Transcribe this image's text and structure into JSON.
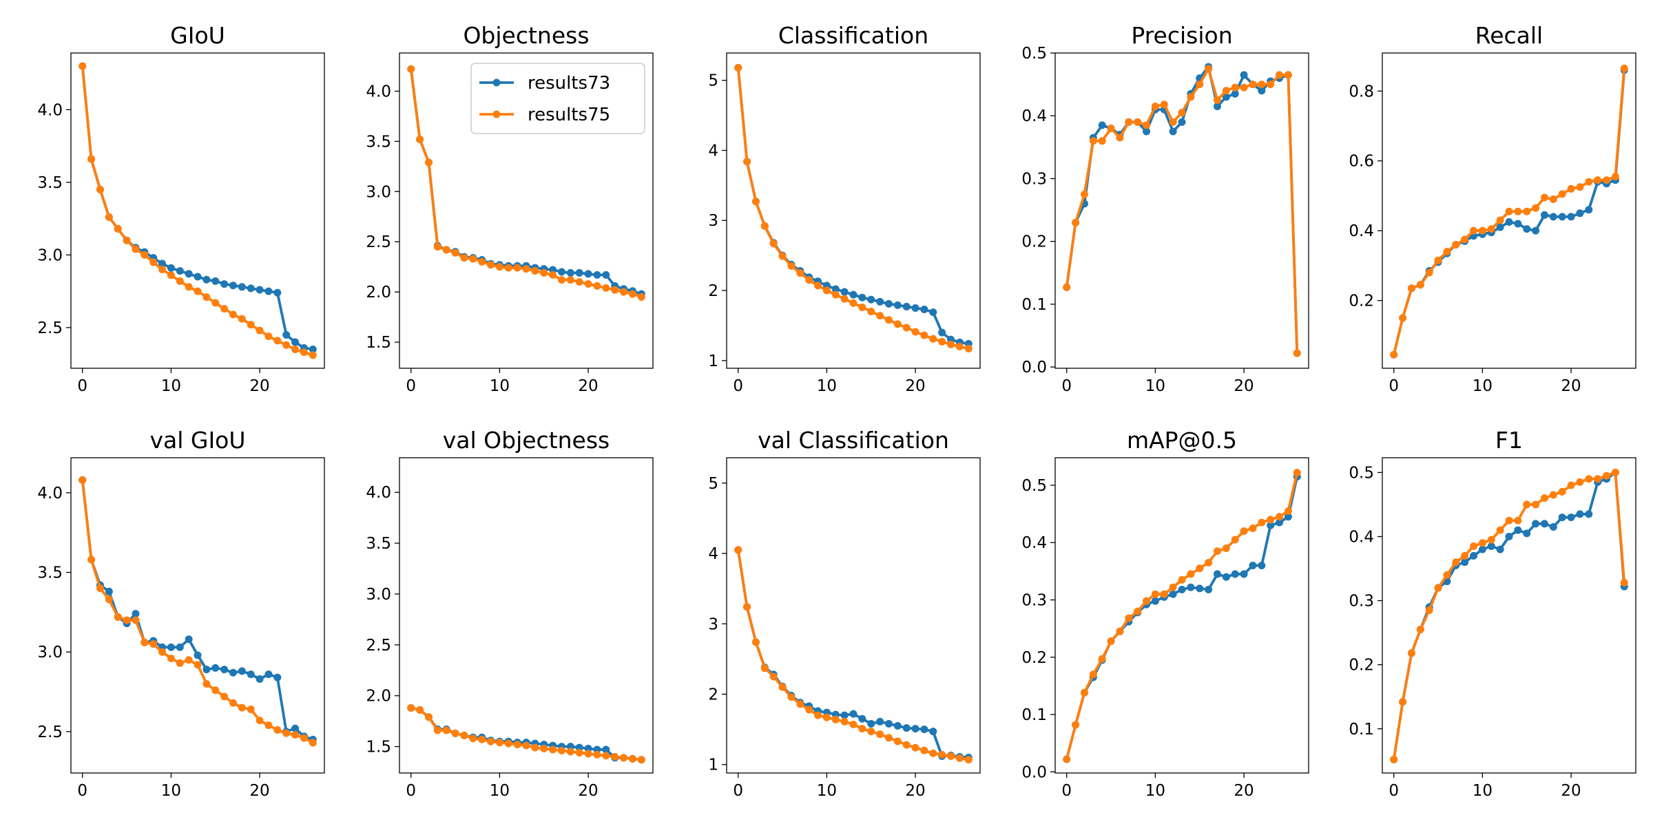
{
  "chart_data": [
    {
      "type": "line",
      "title": "GIoU",
      "x": [
        0,
        1,
        2,
        3,
        4,
        5,
        6,
        7,
        8,
        9,
        10,
        11,
        12,
        13,
        14,
        15,
        16,
        17,
        18,
        19,
        20,
        21,
        22,
        23,
        24,
        25,
        26
      ],
      "xlim": [
        -1.3,
        27.3
      ],
      "xticks": [
        0,
        10,
        20
      ],
      "ylim": [
        2.22,
        4.39
      ],
      "yticks": [
        2.5,
        {
          "value": 3,
          "label": "3.0"
        },
        3.5,
        {
          "value": 4,
          "label": "4.0"
        }
      ],
      "series": [
        {
          "color": "#1f77b4",
          "values": [
            4.3,
            3.66,
            3.45,
            3.26,
            3.18,
            3.1,
            3.05,
            3.02,
            2.98,
            2.94,
            2.91,
            2.89,
            2.87,
            2.85,
            2.83,
            2.82,
            2.8,
            2.79,
            2.78,
            2.77,
            2.76,
            2.75,
            2.74,
            2.45,
            2.4,
            2.36,
            2.35
          ]
        },
        {
          "color": "#ff7f0e",
          "values": [
            4.3,
            3.66,
            3.45,
            3.26,
            3.18,
            3.1,
            3.04,
            3.0,
            2.95,
            2.9,
            2.86,
            2.82,
            2.78,
            2.75,
            2.71,
            2.67,
            2.63,
            2.59,
            2.56,
            2.52,
            2.48,
            2.44,
            2.41,
            2.38,
            2.35,
            2.33,
            2.31
          ]
        }
      ]
    },
    {
      "type": "line",
      "title": "Objectness",
      "x": [
        0,
        1,
        2,
        3,
        4,
        5,
        6,
        7,
        8,
        9,
        10,
        11,
        12,
        13,
        14,
        15,
        16,
        17,
        18,
        19,
        20,
        21,
        22,
        23,
        24,
        25,
        26
      ],
      "xlim": [
        -1.3,
        27.3
      ],
      "xticks": [
        0,
        10,
        20
      ],
      "ylim": [
        1.24,
        4.38
      ],
      "yticks": [
        1.5,
        {
          "value": 2,
          "label": "2.0"
        },
        2.5,
        {
          "value": 3,
          "label": "3.0"
        },
        3.5,
        {
          "value": 4,
          "label": "4.0"
        }
      ],
      "legend": "upper right",
      "series": [
        {
          "name": "results73",
          "color": "#1f77b4",
          "values": [
            4.22,
            3.52,
            3.29,
            2.46,
            2.42,
            2.4,
            2.35,
            2.34,
            2.32,
            2.28,
            2.27,
            2.26,
            2.26,
            2.26,
            2.24,
            2.23,
            2.22,
            2.2,
            2.19,
            2.19,
            2.18,
            2.17,
            2.17,
            2.06,
            2.03,
            2.01,
            1.98
          ]
        },
        {
          "name": "results75",
          "color": "#ff7f0e",
          "values": [
            4.22,
            3.52,
            3.29,
            2.45,
            2.42,
            2.39,
            2.34,
            2.33,
            2.3,
            2.27,
            2.25,
            2.24,
            2.24,
            2.23,
            2.21,
            2.19,
            2.17,
            2.12,
            2.12,
            2.1,
            2.08,
            2.06,
            2.04,
            2.02,
            2.0,
            1.98,
            1.95
          ]
        }
      ]
    },
    {
      "type": "line",
      "title": "Classification",
      "x": [
        0,
        1,
        2,
        3,
        4,
        5,
        6,
        7,
        8,
        9,
        10,
        11,
        12,
        13,
        14,
        15,
        16,
        17,
        18,
        19,
        20,
        21,
        22,
        23,
        24,
        25,
        26
      ],
      "xlim": [
        -1.3,
        27.3
      ],
      "xticks": [
        0,
        10,
        20
      ],
      "ylim": [
        0.89,
        5.39
      ],
      "yticks": [
        1,
        2,
        3,
        4,
        5
      ],
      "series": [
        {
          "color": "#1f77b4",
          "values": [
            5.18,
            3.84,
            3.27,
            2.92,
            2.68,
            2.5,
            2.37,
            2.28,
            2.19,
            2.13,
            2.07,
            2.02,
            1.98,
            1.94,
            1.9,
            1.87,
            1.84,
            1.81,
            1.79,
            1.77,
            1.75,
            1.73,
            1.69,
            1.4,
            1.3,
            1.26,
            1.24
          ]
        },
        {
          "color": "#ff7f0e",
          "values": [
            5.18,
            3.84,
            3.27,
            2.92,
            2.67,
            2.49,
            2.35,
            2.25,
            2.15,
            2.07,
            2.0,
            1.94,
            1.88,
            1.82,
            1.76,
            1.7,
            1.64,
            1.58,
            1.52,
            1.47,
            1.41,
            1.36,
            1.31,
            1.27,
            1.23,
            1.2,
            1.17
          ]
        }
      ]
    },
    {
      "type": "line",
      "title": "Precision",
      "x": [
        0,
        1,
        2,
        3,
        4,
        5,
        6,
        7,
        8,
        9,
        10,
        11,
        12,
        13,
        14,
        15,
        16,
        17,
        18,
        19,
        20,
        21,
        22,
        23,
        24,
        25,
        26
      ],
      "xlim": [
        -1.3,
        27.3
      ],
      "xticks": [
        0,
        10,
        20
      ],
      "ylim": [
        -0.002,
        0.5
      ],
      "yticks": [
        {
          "value": 0,
          "label": "0.0"
        },
        0.1,
        0.2,
        0.3,
        0.4,
        0.5
      ],
      "series": [
        {
          "color": "#1f77b4",
          "values": [
            0.127,
            0.23,
            0.26,
            0.365,
            0.385,
            0.38,
            0.37,
            0.39,
            0.39,
            0.375,
            0.41,
            0.41,
            0.375,
            0.39,
            0.435,
            0.46,
            0.478,
            0.415,
            0.43,
            0.435,
            0.465,
            0.45,
            0.44,
            0.455,
            0.46,
            0.465,
            0.022
          ]
        },
        {
          "color": "#ff7f0e",
          "values": [
            0.127,
            0.23,
            0.275,
            0.36,
            0.36,
            0.38,
            0.365,
            0.39,
            0.39,
            0.385,
            0.415,
            0.418,
            0.39,
            0.405,
            0.43,
            0.45,
            0.475,
            0.425,
            0.44,
            0.445,
            0.445,
            0.45,
            0.45,
            0.45,
            0.465,
            0.465,
            0.022
          ]
        }
      ]
    },
    {
      "type": "line",
      "title": "Recall",
      "x": [
        0,
        1,
        2,
        3,
        4,
        5,
        6,
        7,
        8,
        9,
        10,
        11,
        12,
        13,
        14,
        15,
        16,
        17,
        18,
        19,
        20,
        21,
        22,
        23,
        24,
        25,
        26
      ],
      "xlim": [
        -1.3,
        27.3
      ],
      "xticks": [
        0,
        10,
        20
      ],
      "ylim": [
        0.006,
        0.909
      ],
      "yticks": [
        0.2,
        0.4,
        0.6,
        0.8
      ],
      "series": [
        {
          "color": "#1f77b4",
          "values": [
            0.045,
            0.15,
            0.235,
            0.245,
            0.285,
            0.31,
            0.335,
            0.36,
            0.37,
            0.385,
            0.39,
            0.395,
            0.41,
            0.425,
            0.42,
            0.405,
            0.4,
            0.445,
            0.44,
            0.44,
            0.44,
            0.45,
            0.46,
            0.54,
            0.535,
            0.545,
            0.86
          ]
        },
        {
          "color": "#ff7f0e",
          "values": [
            0.045,
            0.15,
            0.235,
            0.245,
            0.28,
            0.315,
            0.34,
            0.36,
            0.375,
            0.4,
            0.4,
            0.405,
            0.43,
            0.455,
            0.455,
            0.455,
            0.465,
            0.495,
            0.49,
            0.505,
            0.52,
            0.525,
            0.54,
            0.545,
            0.545,
            0.555,
            0.865
          ]
        }
      ]
    },
    {
      "type": "line",
      "title": "val GIoU",
      "x": [
        0,
        1,
        2,
        3,
        4,
        5,
        6,
        7,
        8,
        9,
        10,
        11,
        12,
        13,
        14,
        15,
        16,
        17,
        18,
        19,
        20,
        21,
        22,
        23,
        24,
        25,
        26
      ],
      "xlim": [
        -1.3,
        27.3
      ],
      "xticks": [
        0,
        10,
        20
      ],
      "ylim": [
        2.24,
        4.22
      ],
      "yticks": [
        2.5,
        {
          "value": 3,
          "label": "3.0"
        },
        3.5,
        {
          "value": 4,
          "label": "4.0"
        }
      ],
      "series": [
        {
          "color": "#1f77b4",
          "values": [
            4.08,
            3.58,
            3.42,
            3.38,
            3.22,
            3.18,
            3.24,
            3.06,
            3.07,
            3.03,
            3.03,
            3.03,
            3.08,
            2.98,
            2.89,
            2.9,
            2.89,
            2.87,
            2.88,
            2.86,
            2.83,
            2.86,
            2.84,
            2.5,
            2.52,
            2.47,
            2.45
          ]
        },
        {
          "color": "#ff7f0e",
          "values": [
            4.08,
            3.58,
            3.4,
            3.33,
            3.22,
            3.2,
            3.2,
            3.06,
            3.05,
            3.0,
            2.96,
            2.93,
            2.95,
            2.92,
            2.8,
            2.76,
            2.72,
            2.68,
            2.65,
            2.64,
            2.57,
            2.54,
            2.51,
            2.49,
            2.48,
            2.46,
            2.43
          ]
        }
      ]
    },
    {
      "type": "line",
      "title": "val Objectness",
      "x": [
        0,
        1,
        2,
        3,
        4,
        5,
        6,
        7,
        8,
        9,
        10,
        11,
        12,
        13,
        14,
        15,
        16,
        17,
        18,
        19,
        20,
        21,
        22,
        23,
        24,
        25,
        26
      ],
      "xlim": [
        -1.3,
        27.3
      ],
      "xticks": [
        0,
        10,
        20
      ],
      "ylim": [
        1.24,
        4.34
      ],
      "yticks": [
        1.5,
        {
          "value": 2,
          "label": "2.0"
        },
        2.5,
        {
          "value": 3,
          "label": "3.0"
        },
        3.5,
        {
          "value": 4,
          "label": "4.0"
        }
      ],
      "series": [
        {
          "color": "#1f77b4",
          "values": [
            1.88,
            1.86,
            1.79,
            1.67,
            1.67,
            1.63,
            1.61,
            1.59,
            1.59,
            1.56,
            1.55,
            1.55,
            1.54,
            1.54,
            1.53,
            1.52,
            1.51,
            1.5,
            1.5,
            1.49,
            1.48,
            1.47,
            1.47,
            1.39,
            1.39,
            1.38,
            1.37
          ]
        },
        {
          "color": "#ff7f0e",
          "values": [
            1.88,
            1.86,
            1.79,
            1.66,
            1.66,
            1.63,
            1.61,
            1.58,
            1.57,
            1.55,
            1.54,
            1.53,
            1.52,
            1.51,
            1.49,
            1.48,
            1.47,
            1.46,
            1.45,
            1.44,
            1.43,
            1.42,
            1.41,
            1.4,
            1.39,
            1.38,
            1.37
          ]
        }
      ]
    },
    {
      "type": "line",
      "title": "val Classification",
      "x": [
        0,
        1,
        2,
        3,
        4,
        5,
        6,
        7,
        8,
        9,
        10,
        11,
        12,
        13,
        14,
        15,
        16,
        17,
        18,
        19,
        20,
        21,
        22,
        23,
        24,
        25,
        26
      ],
      "xlim": [
        -1.3,
        27.3
      ],
      "xticks": [
        0,
        10,
        20
      ],
      "ylim": [
        0.88,
        5.36
      ],
      "yticks": [
        1,
        2,
        3,
        4,
        5
      ],
      "series": [
        {
          "color": "#1f77b4",
          "values": [
            4.05,
            3.24,
            2.74,
            2.38,
            2.28,
            2.11,
            1.98,
            1.88,
            1.83,
            1.76,
            1.74,
            1.71,
            1.7,
            1.72,
            1.65,
            1.58,
            1.61,
            1.58,
            1.55,
            1.52,
            1.51,
            1.5,
            1.47,
            1.12,
            1.13,
            1.11,
            1.1
          ]
        },
        {
          "color": "#ff7f0e",
          "values": [
            4.05,
            3.24,
            2.74,
            2.37,
            2.25,
            2.1,
            1.96,
            1.86,
            1.78,
            1.7,
            1.67,
            1.64,
            1.61,
            1.57,
            1.51,
            1.47,
            1.43,
            1.38,
            1.33,
            1.28,
            1.24,
            1.2,
            1.16,
            1.14,
            1.12,
            1.09,
            1.07
          ]
        }
      ]
    },
    {
      "type": "line",
      "title": "mAP@0.5",
      "x": [
        0,
        1,
        2,
        3,
        4,
        5,
        6,
        7,
        8,
        9,
        10,
        11,
        12,
        13,
        14,
        15,
        16,
        17,
        18,
        19,
        20,
        21,
        22,
        23,
        24,
        25,
        26
      ],
      "xlim": [
        -1.3,
        27.3
      ],
      "xticks": [
        0,
        10,
        20
      ],
      "ylim": [
        -0.002,
        0.548
      ],
      "yticks": [
        {
          "value": 0,
          "label": "0.0"
        },
        0.1,
        0.2,
        0.3,
        0.4,
        0.5
      ],
      "series": [
        {
          "color": "#1f77b4",
          "values": [
            0.022,
            0.082,
            0.138,
            0.165,
            0.195,
            0.228,
            0.245,
            0.262,
            0.278,
            0.292,
            0.298,
            0.305,
            0.31,
            0.318,
            0.322,
            0.32,
            0.318,
            0.345,
            0.34,
            0.345,
            0.345,
            0.36,
            0.36,
            0.43,
            0.435,
            0.445,
            0.515
          ]
        },
        {
          "color": "#ff7f0e",
          "values": [
            0.022,
            0.082,
            0.138,
            0.17,
            0.197,
            0.228,
            0.245,
            0.268,
            0.28,
            0.298,
            0.31,
            0.31,
            0.322,
            0.335,
            0.345,
            0.355,
            0.365,
            0.385,
            0.39,
            0.405,
            0.42,
            0.425,
            0.435,
            0.44,
            0.445,
            0.455,
            0.522
          ]
        }
      ]
    },
    {
      "type": "line",
      "title": "F1",
      "x": [
        0,
        1,
        2,
        3,
        4,
        5,
        6,
        7,
        8,
        9,
        10,
        11,
        12,
        13,
        14,
        15,
        16,
        17,
        18,
        19,
        20,
        21,
        22,
        23,
        24,
        25,
        26
      ],
      "xlim": [
        -1.3,
        27.3
      ],
      "xticks": [
        0,
        10,
        20
      ],
      "ylim": [
        0.031,
        0.523
      ],
      "yticks": [
        0.1,
        0.2,
        0.3,
        0.4,
        0.5
      ],
      "series": [
        {
          "color": "#1f77b4",
          "values": [
            0.052,
            0.142,
            0.218,
            0.255,
            0.29,
            0.32,
            0.33,
            0.355,
            0.36,
            0.37,
            0.38,
            0.385,
            0.38,
            0.4,
            0.41,
            0.405,
            0.42,
            0.42,
            0.415,
            0.43,
            0.43,
            0.435,
            0.435,
            0.485,
            0.49,
            0.5,
            0.322
          ]
        },
        {
          "color": "#ff7f0e",
          "values": [
            0.052,
            0.142,
            0.218,
            0.255,
            0.285,
            0.32,
            0.34,
            0.36,
            0.37,
            0.385,
            0.39,
            0.395,
            0.41,
            0.425,
            0.425,
            0.45,
            0.45,
            0.46,
            0.465,
            0.47,
            0.48,
            0.485,
            0.49,
            0.49,
            0.495,
            0.5,
            0.328
          ]
        }
      ]
    }
  ]
}
